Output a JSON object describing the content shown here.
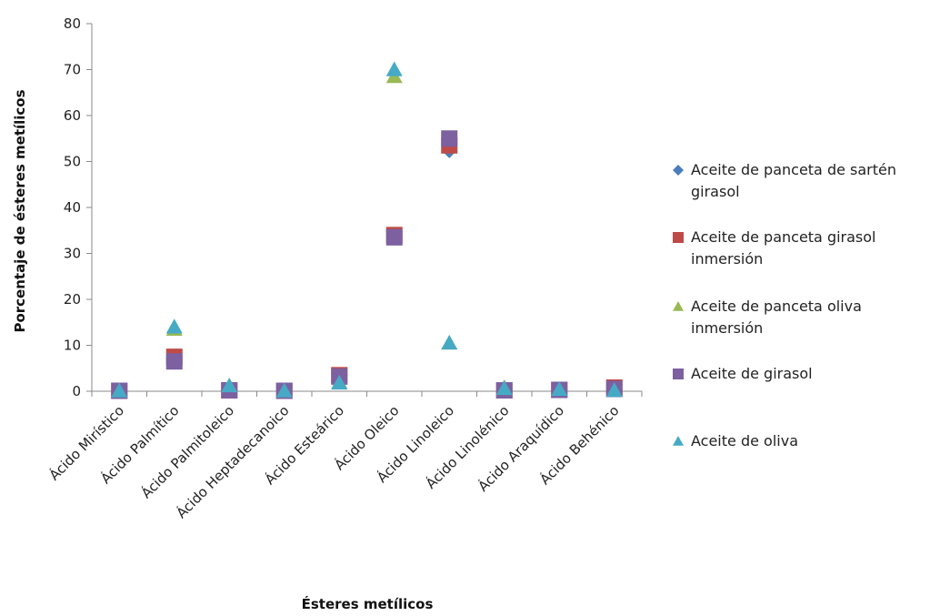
{
  "chart_data": {
    "type": "scatter",
    "xlabel": "Ésteres metílicos",
    "ylabel": "Porcentaje de ésteres metílicos",
    "ylim": [
      0,
      80
    ],
    "yticks": [
      0,
      10,
      20,
      30,
      40,
      50,
      60,
      70,
      80
    ],
    "grid": false,
    "legend_position": "right",
    "categories": [
      "Ácido Mirístico",
      "Ácido Palmítico",
      "Ácido Palmitoleico",
      "Ácido Heptadecanoico",
      "Ácido Esteárico",
      "Ácido Oleico",
      "Ácido Linoleico",
      "Ácido Linolénico",
      "Ácido Araquídico",
      "Ácido Behénico"
    ],
    "series": [
      {
        "name": "Aceite de panceta de sartén girasol",
        "marker": "diamond",
        "color": "#4a7ebb",
        "values": [
          0.1,
          7.0,
          0.2,
          0.1,
          3.5,
          34.0,
          52.5,
          0.2,
          0.3,
          0.5
        ]
      },
      {
        "name": "Aceite de panceta girasol inmersión",
        "marker": "square",
        "color": "#be4b48",
        "values": [
          0.1,
          7.5,
          0.2,
          0.1,
          3.5,
          34.0,
          53.5,
          0.2,
          0.3,
          0.8
        ]
      },
      {
        "name": "Aceite de panceta oliva inmersión",
        "marker": "triangle",
        "color": "#98b954",
        "values": [
          0.1,
          13.5,
          1.0,
          0.1,
          2.0,
          68.5,
          10.5,
          0.8,
          0.4,
          0.2
        ]
      },
      {
        "name": "Aceite de girasol",
        "marker": "square",
        "color": "#7d60a0",
        "values": [
          0.1,
          6.5,
          0.2,
          0.1,
          3.2,
          33.5,
          55.0,
          0.2,
          0.3,
          0.5
        ]
      },
      {
        "name": "Aceite de oliva",
        "marker": "triangle",
        "color": "#46aac5",
        "values": [
          0.1,
          14.0,
          1.2,
          0.1,
          1.8,
          70.0,
          10.5,
          0.6,
          0.4,
          0.2
        ]
      }
    ],
    "legend": [
      {
        "lines": [
          "Aceite de panceta de sartén",
          "girasol"
        ]
      },
      {
        "lines": [
          "Aceite de panceta girasol",
          "inmersión"
        ]
      },
      {
        "lines": [
          "Aceite de panceta oliva",
          "inmersión"
        ]
      },
      {
        "lines": [
          "Aceite de girasol"
        ]
      },
      {
        "lines": [
          "Aceite de oliva"
        ]
      }
    ]
  }
}
